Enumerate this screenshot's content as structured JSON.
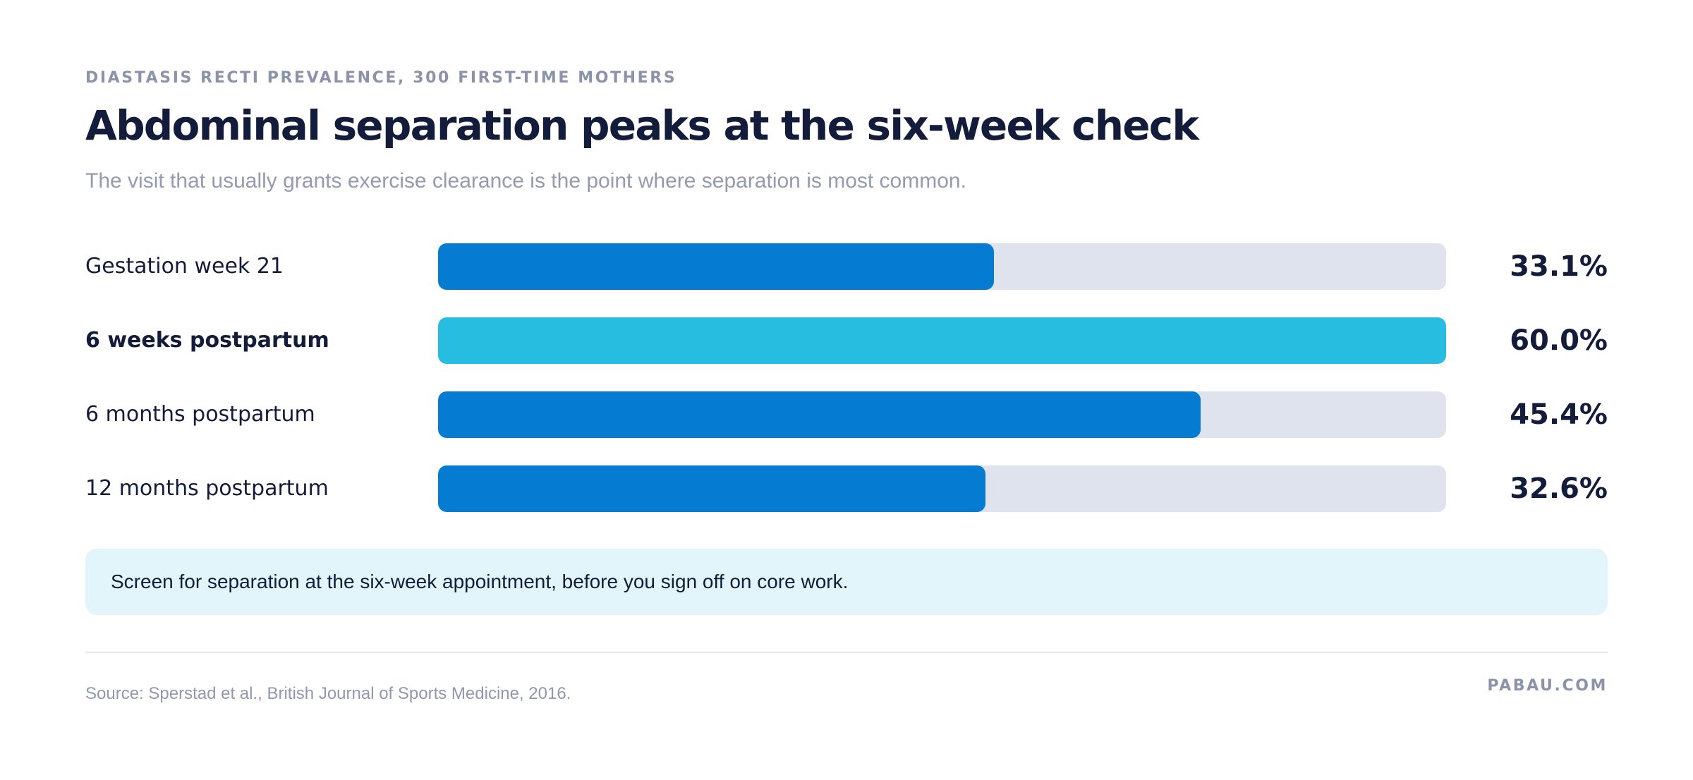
{
  "header": {
    "eyebrow": "DIASTASIS RECTI PREVALENCE, 300 FIRST-TIME MOTHERS",
    "title": "Abdominal separation peaks at the six-week check",
    "subtitle": "The visit that usually grants exercise clearance is the point where separation is most common."
  },
  "chart_data": {
    "type": "bar",
    "orientation": "horizontal",
    "title": "Abdominal separation peaks at the six-week check",
    "subtitle": "The visit that usually grants exercise clearance is the point where separation is most common.",
    "categories": [
      "Gestation week 21",
      "6 weeks postpartum",
      "6 months postpartum",
      "12 months postpartum"
    ],
    "values": [
      33.1,
      60.0,
      45.4,
      32.6
    ],
    "value_labels": [
      "33.1%",
      "60.0%",
      "45.4%",
      "32.6%"
    ],
    "unit": "%",
    "xlim": [
      0,
      60
    ],
    "grid": false,
    "legend": "none",
    "highlight_index": 1
  },
  "colors": {
    "bar": "#057bd2",
    "highlight_bar": "#26bde1",
    "track": "#dfe3ed",
    "callout_bg": "#e2f5fa",
    "text": "#131c3a",
    "muted": "#8a93a9"
  },
  "callout": {
    "text": "Screen for separation at the six-week appointment, before you sign off on core work."
  },
  "footer": {
    "source": "Source: Sperstad et al., British Journal of Sports Medicine, 2016.",
    "brand": "PABAU.COM"
  }
}
